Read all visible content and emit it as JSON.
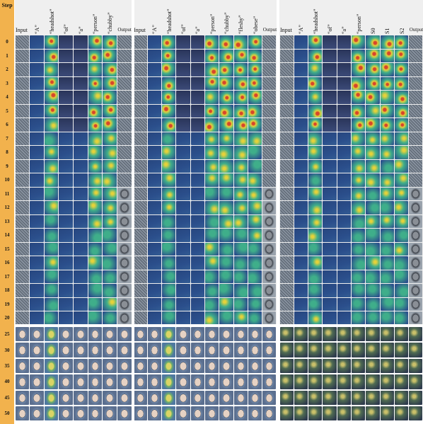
{
  "step_header": "Step",
  "steps": [
    "0",
    "1",
    "2",
    "3",
    "4",
    "5",
    "6",
    "7",
    "8",
    "9",
    "10",
    "11",
    "12",
    "13",
    "14",
    "15",
    "16",
    "17",
    "18",
    "19",
    "20",
    "25",
    "30",
    "35",
    "40",
    "45",
    "50"
  ],
  "panels": [
    {
      "id": "left",
      "columns": [
        "Input",
        "“A”",
        "“headshot”",
        "“of”",
        "“a”",
        "“person”",
        "“chubby”",
        "Output"
      ]
    },
    {
      "id": "middle",
      "columns": [
        "Input",
        "“A”",
        "“headshot”",
        "“of”",
        "“a”",
        "“person”",
        "“chubby”",
        "“fleshy”",
        "“obese”",
        "Output"
      ]
    },
    {
      "id": "right",
      "columns": [
        "Input",
        "“A”",
        "“headshot”",
        "“of”",
        "“a”",
        "“person”",
        "S0",
        "S1",
        "S2",
        "Output"
      ]
    }
  ],
  "palette": {
    "step_bar": "#f2b24d",
    "noise": "#6f7a86",
    "attn_low": "#2b4f8c",
    "attn_mid": "#3fae8a",
    "attn_high": "#e5d23a",
    "attn_peak": "#d6452b",
    "face_bg": "#5b6f8f"
  }
}
